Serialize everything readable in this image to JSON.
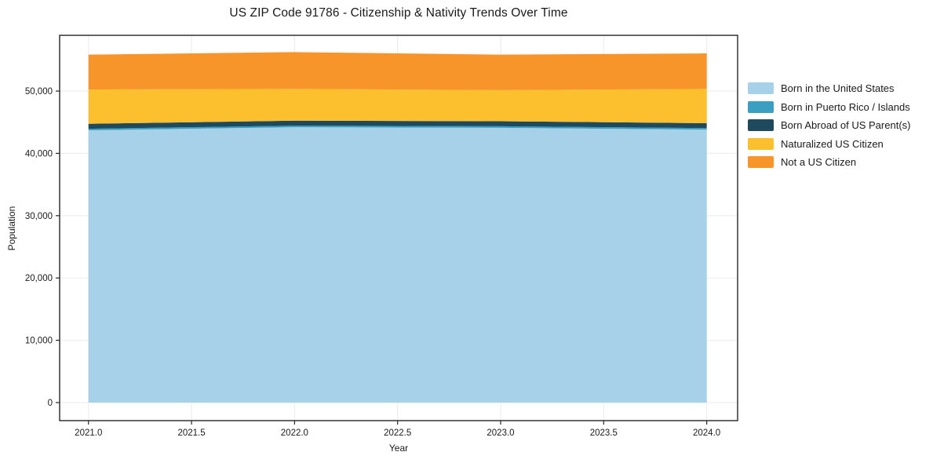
{
  "chart_data": {
    "type": "area",
    "stacked": true,
    "title": "US ZIP Code 91786 - Citizenship & Nativity Trends Over Time",
    "xlabel": "Year",
    "ylabel": "Population",
    "x": [
      2021,
      2022,
      2023,
      2024
    ],
    "series": [
      {
        "name": "Born in the United States",
        "color": "#a7d1e8",
        "values": [
          43700,
          44200,
          44100,
          43800
        ]
      },
      {
        "name": "Born in Puerto Rico / Islands",
        "color": "#3a9fc1",
        "values": [
          250,
          250,
          250,
          250
        ]
      },
      {
        "name": "Born Abroad of US Parent(s)",
        "color": "#1f4a5e",
        "values": [
          800,
          800,
          800,
          800
        ]
      },
      {
        "name": "Naturalized US Citizen",
        "color": "#fcc02f",
        "values": [
          5500,
          5100,
          5000,
          5500
        ]
      },
      {
        "name": "Not a US Citizen",
        "color": "#f8952a",
        "values": [
          5600,
          5900,
          5700,
          5700
        ]
      }
    ],
    "xlim": [
      2020.86,
      2024.15
    ],
    "ylim": [
      -2900,
      58950
    ],
    "xtick_labels": [
      "2021.0",
      "2021.5",
      "2022.0",
      "2022.5",
      "2023.0",
      "2023.5",
      "2024.0"
    ],
    "ytick_labels": [
      "0",
      "10,000",
      "20,000",
      "30,000",
      "40,000",
      "50,000"
    ],
    "grid": true,
    "grid_color": "#ebebeb",
    "axis_color": "#262626",
    "background": "#ffffff",
    "legend_position": "right-outside"
  }
}
